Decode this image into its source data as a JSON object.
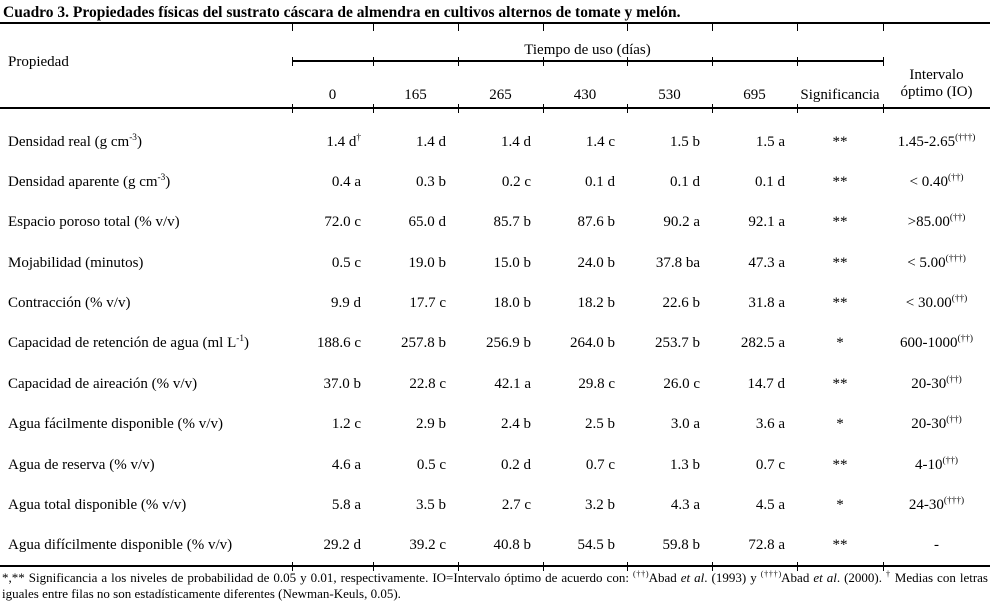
{
  "title": "Cuadro 3. Propiedades físicas del sustrato cáscara de almendra en cultivos alternos de tomate y melón.",
  "table": {
    "property_header": "Propiedad",
    "group_header": "Tiempo de uso (días)",
    "day_columns": [
      "0",
      "165",
      "265",
      "430",
      "530",
      "695"
    ],
    "significance_header": "Significancia",
    "io_header": [
      "Intervalo",
      "óptimo (IO)"
    ],
    "rows": [
      {
        "property": "Densidad real (g cm^{-3})",
        "values": [
          "1.4 d^{†}",
          "1.4 d",
          "1.4 d",
          "1.4 c",
          "1.5 b",
          "1.5 a"
        ],
        "sig": "**",
        "io": "1.45-2.65^{(†††)}"
      },
      {
        "property": "Densidad aparente (g cm^{-3})",
        "values": [
          "0.4 a",
          "0.3 b",
          "0.2 c",
          "0.1 d",
          "0.1 d",
          "0.1 d"
        ],
        "sig": "**",
        "io": "< 0.40^{(††)}"
      },
      {
        "property": "Espacio poroso total (% v/v)",
        "values": [
          "72.0 c",
          "65.0 d",
          "85.7 b",
          "87.6 b",
          "90.2 a",
          "92.1 a"
        ],
        "sig": "**",
        "io": ">85.00^{(††)}"
      },
      {
        "property": "Mojabilidad (minutos)",
        "values": [
          "0.5 c",
          "19.0 b",
          "15.0 b",
          "24.0 b",
          "37.8 ba",
          "47.3 a"
        ],
        "sig": "**",
        "io": "< 5.00^{(†††)}"
      },
      {
        "property": "Contracción (% v/v)",
        "values": [
          "9.9 d",
          "17.7 c",
          "18.0 b",
          "18.2 b",
          "22.6 b",
          "31.8 a"
        ],
        "sig": "**",
        "io": "< 30.00^{(††)}"
      },
      {
        "property": "Capacidad de retención de agua (ml L^{-1})",
        "values": [
          "188.6 c",
          "257.8 b",
          "256.9 b",
          "264.0 b",
          "253.7 b",
          "282.5 a"
        ],
        "sig": "*",
        "io": "600-1000^{(††)}"
      },
      {
        "property": "Capacidad de aireación (% v/v)",
        "values": [
          "37.0 b",
          "22.8 c",
          "42.1 a",
          "29.8 c",
          "26.0 c",
          "14.7 d"
        ],
        "sig": "**",
        "io": "20-30^{(††)}"
      },
      {
        "property": "Agua fácilmente disponible (% v/v)",
        "values": [
          "1.2 c",
          "2.9 b",
          "2.4 b",
          "2.5 b",
          "3.0 a",
          "3.6 a"
        ],
        "sig": "*",
        "io": "20-30^{(††)}"
      },
      {
        "property": "Agua de reserva (% v/v)",
        "values": [
          "4.6 a",
          "0.5 c",
          "0.2 d",
          "0.7 c",
          "1.3 b",
          "0.7 c"
        ],
        "sig": "**",
        "io": "4-10^{(††)}"
      },
      {
        "property": "Agua total disponible (% v/v)",
        "values": [
          "5.8 a",
          "3.5 b",
          "2.7 c",
          "3.2 b",
          "4.3 a",
          "4.5 a"
        ],
        "sig": "*",
        "io": "24-30^{(†††)}"
      },
      {
        "property": "Agua difícilmente disponible (% v/v)",
        "values": [
          "29.2 d",
          "39.2 c",
          "40.8 b",
          "54.5 b",
          "59.8 b",
          "72.8 a"
        ],
        "sig": "**",
        "io": "-"
      }
    ]
  },
  "footnote": "*,** Significancia a los niveles de probabilidad de 0.05 y 0.01, respectivamente. IO=Intervalo óptimo de acuerdo con: ^{(††)}Abad ~{et al}. (1993) y ^{(†††)}Abad ~{et al}. (2000). ^{†} Medias con letras iguales entre filas no son estadísticamente diferentes (Newman-Keuls, 0.05)."
}
